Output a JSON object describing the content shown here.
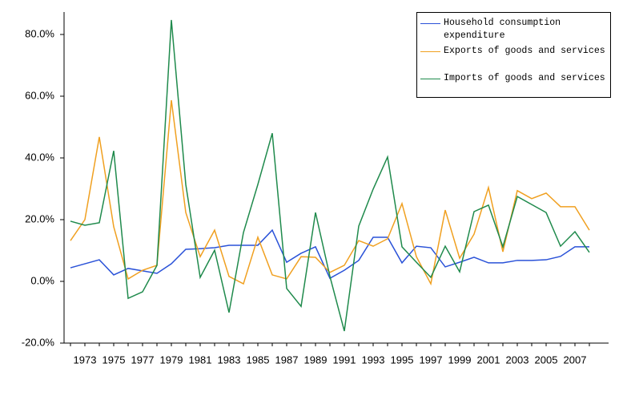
{
  "chart_data": {
    "type": "line",
    "categories": [
      null,
      "1973",
      null,
      "1975",
      null,
      "1977",
      null,
      "1979",
      null,
      "1981",
      null,
      "1983",
      null,
      "1985",
      null,
      "1987",
      null,
      "1989",
      null,
      "1991",
      null,
      "1993",
      null,
      "1995",
      null,
      "1997",
      null,
      "1999",
      null,
      "2001",
      null,
      "2003",
      null,
      "2005",
      null,
      "2007",
      null
    ],
    "series": [
      {
        "name": "Household consumption expenditure",
        "color": "#2a52d8",
        "values": [
          4.4,
          5.7,
          7,
          2.1,
          4.2,
          3.4,
          2.6,
          5.7,
          10.4,
          10.6,
          10.9,
          11.7,
          11.7,
          11.7,
          16.6,
          6.2,
          9.1,
          11.2,
          1,
          3.6,
          6.8,
          14.3,
          14.3,
          6,
          11.4,
          10.9,
          4.7,
          6.2,
          7.8,
          6,
          6,
          6.8,
          6.8,
          7,
          8.1,
          11.2,
          11.2
        ]
      },
      {
        "name": "Exports of goods and services",
        "color": "#f0a020",
        "values": [
          13.2,
          20,
          46.8,
          17.7,
          0.8,
          3.6,
          5.2,
          58.7,
          22.3,
          8,
          16.6,
          1.6,
          -0.8,
          14.3,
          2.1,
          0.8,
          8,
          7.8,
          2.9,
          5.2,
          13.2,
          11.4,
          13.8,
          25.2,
          8,
          -0.8,
          23.1,
          7.5,
          15.3,
          30.4,
          9.6,
          29.4,
          26.8,
          28.6,
          24.2,
          24.2,
          16.6
        ]
      },
      {
        "name": "Imports of goods and services",
        "color": "#1f8a4c",
        "values": [
          19.5,
          18.2,
          19,
          42.3,
          -5.5,
          -3.4,
          5.2,
          84.7,
          31.4,
          1.3,
          10.1,
          -10.1,
          15.8,
          31.4,
          48,
          -2.3,
          -8.1,
          22.3,
          1.6,
          -16.1,
          17.9,
          29.9,
          40.3,
          11.2,
          6.2,
          1.3,
          11.4,
          3.1,
          22.6,
          24.7,
          11.2,
          27.5,
          24.9,
          22.3,
          11.4,
          16.1,
          9.4
        ]
      }
    ],
    "ylim": [
      -20,
      87
    ],
    "yticks": [
      {
        "value": -20,
        "label": "-20.0%"
      },
      {
        "value": 0,
        "label": "0.0%"
      },
      {
        "value": 20,
        "label": "20.0%"
      },
      {
        "value": 40,
        "label": "40.0%"
      },
      {
        "value": 60,
        "label": "60.0%"
      },
      {
        "value": 80,
        "label": "80.0%"
      }
    ],
    "legend": "top-right"
  }
}
